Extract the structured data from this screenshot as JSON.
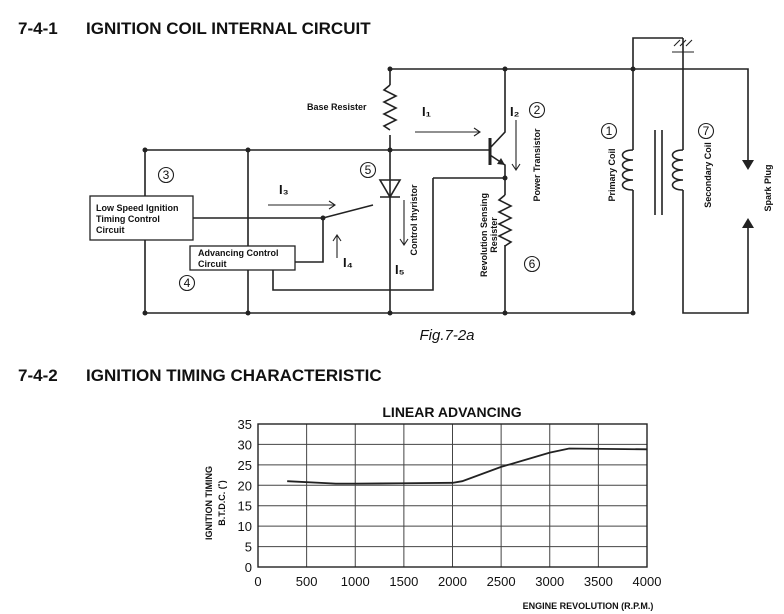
{
  "section1": {
    "number": "7-4-1",
    "title": "IGNITION COIL INTERNAL CIRCUIT"
  },
  "diagram": {
    "base_resister": "Base Resister",
    "i1": "I₁",
    "i2": "I₂",
    "i3": "I₃",
    "i4": "I₄",
    "i5": "I₅",
    "n1": "1",
    "n2": "2",
    "n3": "3",
    "n4": "4",
    "n5": "5",
    "n6": "6",
    "n7": "7",
    "low_speed": [
      "Low Speed Ignition",
      "Timing Control",
      "Circuit"
    ],
    "advancing": [
      "Advancing Control",
      "Circuit"
    ],
    "control_thyristor": "Control thyristor",
    "power_transistor": "Power Transistor",
    "revolution_sensing": [
      "Revolution Sensing",
      "Resister"
    ],
    "primary_coil": "Primary Coil",
    "secondary_coil": "Secondary Coil",
    "spark_plug": "Spark Plug"
  },
  "caption": "Fig.7-2a",
  "section2": {
    "number": "7-4-2",
    "title": "IGNITION TIMING CHARACTERISTIC"
  },
  "chart_data": {
    "type": "line",
    "title": "LINEAR ADVANCING",
    "y_label": [
      "IGNITION TIMING",
      "B.T.D.C. (˚)"
    ],
    "x_label": "ENGINE REVOLUTION (R.P.M.)",
    "x": [
      300,
      800,
      1000,
      1500,
      2000,
      2100,
      2500,
      3000,
      3200,
      4000
    ],
    "values": [
      21,
      20.4,
      20.4,
      20.5,
      20.6,
      21,
      24.5,
      28,
      29,
      28.8
    ],
    "color": "#222222",
    "xlim": [
      0,
      4000
    ],
    "xticks": [
      0,
      500,
      1000,
      1500,
      2000,
      2500,
      3000,
      3500,
      4000
    ],
    "ylim": [
      0,
      35
    ],
    "yticks": [
      0,
      5,
      10,
      15,
      20,
      25,
      30,
      35
    ],
    "grid": true
  }
}
